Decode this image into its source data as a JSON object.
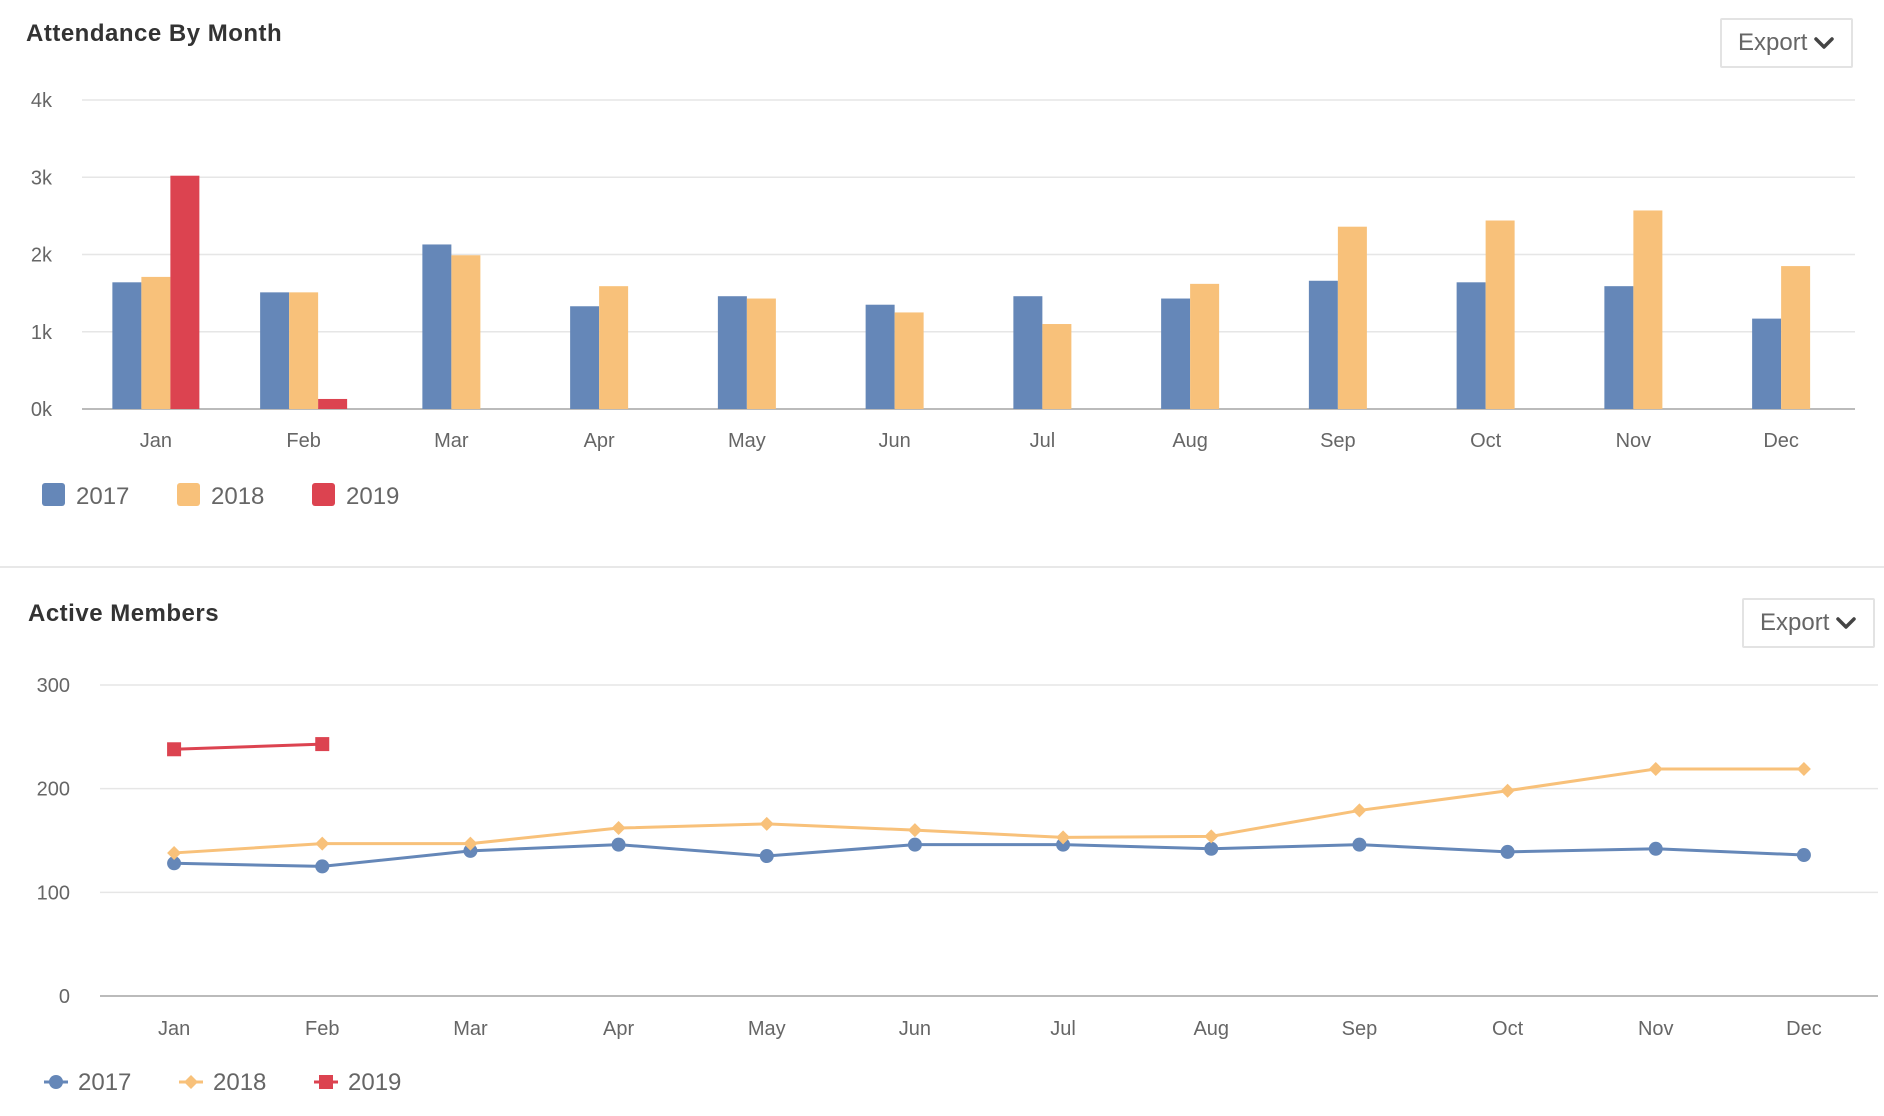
{
  "panels": [
    {
      "title": "Attendance By Month",
      "export_label": "Export"
    },
    {
      "title": "Active Members",
      "export_label": "Export"
    }
  ],
  "colors": {
    "2017": "#6587b8",
    "2018": "#f8c17a",
    "2019": "#dc4350",
    "grid": "#e6e6e6",
    "axis": "#bbbbbb"
  },
  "chart_data": [
    {
      "type": "bar",
      "title": "Attendance By Month",
      "categories": [
        "Jan",
        "Feb",
        "Mar",
        "Apr",
        "May",
        "Jun",
        "Jul",
        "Aug",
        "Sep",
        "Oct",
        "Nov",
        "Dec"
      ],
      "ylim": [
        0,
        4000
      ],
      "yticks": [
        0,
        1000,
        2000,
        3000,
        4000
      ],
      "ytick_labels": [
        "0k",
        "1k",
        "2k",
        "3k",
        "4k"
      ],
      "grid": true,
      "legend": "bottom-left",
      "series": [
        {
          "name": "2017",
          "values": [
            1640,
            1510,
            2130,
            1330,
            1460,
            1350,
            1460,
            1430,
            1660,
            1640,
            1590,
            1170
          ]
        },
        {
          "name": "2018",
          "values": [
            1710,
            1510,
            1990,
            1590,
            1430,
            1250,
            1100,
            1620,
            2360,
            2440,
            2570,
            1850
          ]
        },
        {
          "name": "2019",
          "values": [
            3020,
            130,
            null,
            null,
            null,
            null,
            null,
            null,
            null,
            null,
            null,
            null
          ]
        }
      ]
    },
    {
      "type": "line",
      "title": "Active Members",
      "categories": [
        "Jan",
        "Feb",
        "Mar",
        "Apr",
        "May",
        "Jun",
        "Jul",
        "Aug",
        "Sep",
        "Oct",
        "Nov",
        "Dec"
      ],
      "ylim": [
        0,
        300
      ],
      "yticks": [
        0,
        100,
        200,
        300
      ],
      "ytick_labels": [
        "0",
        "100",
        "200",
        "300"
      ],
      "grid": true,
      "legend": "bottom-left",
      "series": [
        {
          "name": "2017",
          "marker": "circle",
          "values": [
            128,
            125,
            140,
            146,
            135,
            146,
            146,
            142,
            146,
            139,
            142,
            136
          ]
        },
        {
          "name": "2018",
          "marker": "diamond",
          "values": [
            138,
            147,
            147,
            162,
            166,
            160,
            153,
            154,
            179,
            198,
            219,
            219
          ]
        },
        {
          "name": "2019",
          "marker": "square",
          "values": [
            238,
            243,
            null,
            null,
            null,
            null,
            null,
            null,
            null,
            null,
            null,
            null
          ]
        }
      ]
    }
  ]
}
